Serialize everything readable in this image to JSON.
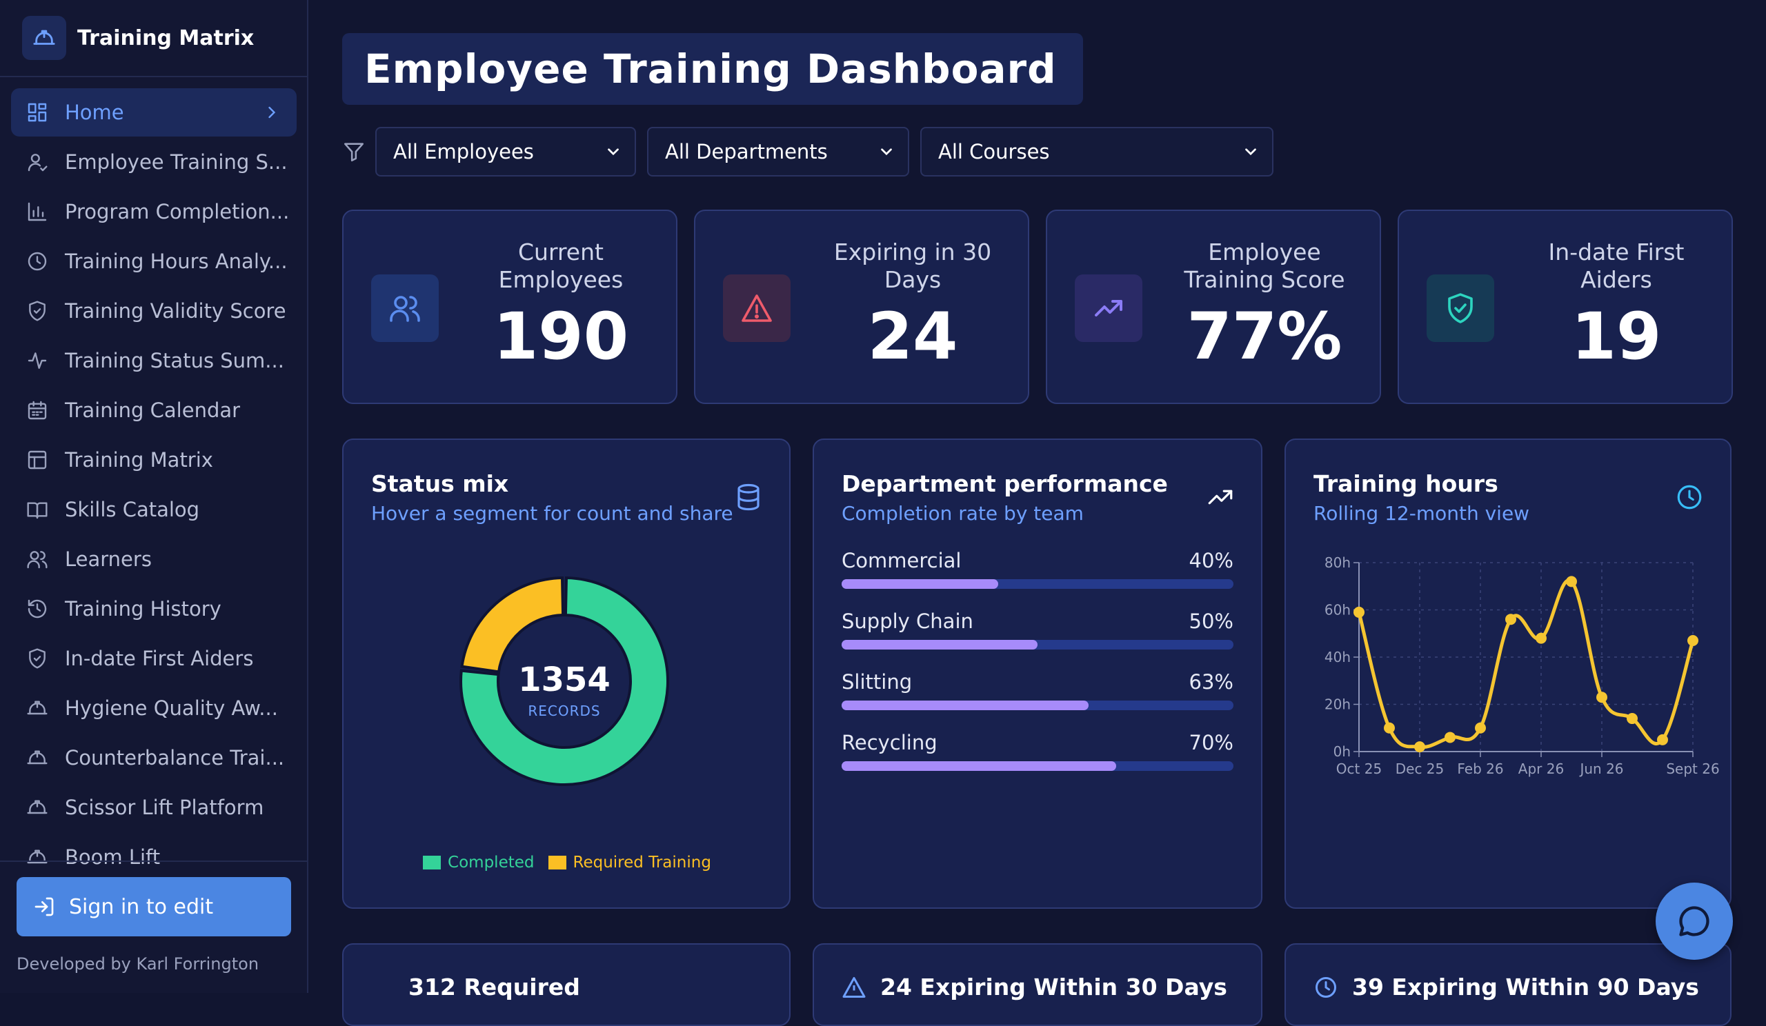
{
  "app": {
    "title": "Training Matrix"
  },
  "sidebar": {
    "items": [
      {
        "label": "Home",
        "icon": "dashboard-icon",
        "active": true
      },
      {
        "label": "Employee Training S...",
        "icon": "user-icon"
      },
      {
        "label": "Program Completion...",
        "icon": "bar-chart-icon"
      },
      {
        "label": "Training Hours Analy...",
        "icon": "clock-icon"
      },
      {
        "label": "Training Validity Score",
        "icon": "shield-check-icon"
      },
      {
        "label": "Training Status Sum...",
        "icon": "activity-icon"
      },
      {
        "label": "Training Calendar",
        "icon": "calendar-icon"
      },
      {
        "label": "Training Matrix",
        "icon": "table-icon"
      },
      {
        "label": "Skills Catalog",
        "icon": "book-icon"
      },
      {
        "label": "Learners",
        "icon": "users-icon"
      },
      {
        "label": "Training History",
        "icon": "history-icon"
      },
      {
        "label": "In-date First Aiders",
        "icon": "shield-check-icon"
      },
      {
        "label": "Hygiene Quality Aw...",
        "icon": "hard-hat-icon"
      },
      {
        "label": "Counterbalance Trai...",
        "icon": "hard-hat-icon"
      },
      {
        "label": "Scissor Lift Platform",
        "icon": "hard-hat-icon"
      },
      {
        "label": "Boom Lift",
        "icon": "hard-hat-icon"
      }
    ],
    "signin_label": "Sign in to edit",
    "developer": "Developed by Karl Forrington"
  },
  "main": {
    "title": "Employee Training Dashboard",
    "filters": [
      {
        "value": "All Employees"
      },
      {
        "value": "All Departments"
      },
      {
        "value": "All Courses"
      }
    ],
    "stats": [
      {
        "label": "Current Employees",
        "value": "190",
        "icon": "users-icon",
        "color": "#5b8def"
      },
      {
        "label": "Expiring in 30 Days",
        "value": "24",
        "icon": "alert-triangle-icon",
        "color": "#ef5b6b"
      },
      {
        "label": "Employee Training Score",
        "value": "77%",
        "icon": "trending-up-icon",
        "color": "#8b7cf6"
      },
      {
        "label": "In-date First Aiders",
        "value": "19",
        "icon": "shield-check-icon",
        "color": "#2dd4bf"
      }
    ],
    "status_mix": {
      "title": "Status mix",
      "subtitle": "Hover a segment for count and share",
      "total": "1354",
      "total_label": "RECORDS"
    },
    "dept": {
      "title": "Department performance",
      "subtitle": "Completion rate by team"
    },
    "hours": {
      "title": "Training hours",
      "subtitle": "Rolling 12-month view"
    },
    "bottom_cards": [
      {
        "title": "312 Required"
      },
      {
        "title": "24 Expiring Within 30 Days"
      },
      {
        "title": "39 Expiring Within 90 Days"
      }
    ]
  },
  "chart_data": [
    {
      "type": "pie",
      "labels": [
        "Completed",
        "Required Training"
      ],
      "values": [
        1042,
        312
      ],
      "colors": [
        "#34d399",
        "#fbbf24"
      ]
    },
    {
      "type": "bar",
      "categories": [
        "Commercial",
        "Supply Chain",
        "Slitting",
        "Recycling"
      ],
      "values": [
        40,
        50,
        63,
        70
      ],
      "value_labels": [
        "40%",
        "50%",
        "63%",
        "70%"
      ],
      "ylim": [
        0,
        100
      ]
    },
    {
      "type": "line",
      "x_ticks": [
        "Oct 25",
        "Dec 25",
        "Feb 26",
        "Apr 26",
        "Jun 26",
        "Sept 26"
      ],
      "y_ticks": [
        "0h",
        "20h",
        "40h",
        "60h",
        "80h"
      ],
      "ylim": [
        0,
        80
      ],
      "x": [
        "Oct 25",
        "Nov 25",
        "Dec 25",
        "Jan 26",
        "Feb 26",
        "Mar 26",
        "Apr 26",
        "May 26",
        "Jun 26",
        "Jul 26",
        "Aug 26",
        "Sept 26"
      ],
      "series": [
        {
          "values": [
            59,
            10,
            2,
            6,
            10,
            56,
            48,
            72,
            23,
            14,
            5,
            47
          ],
          "color": "#f5c531"
        }
      ],
      "grid": true
    }
  ]
}
